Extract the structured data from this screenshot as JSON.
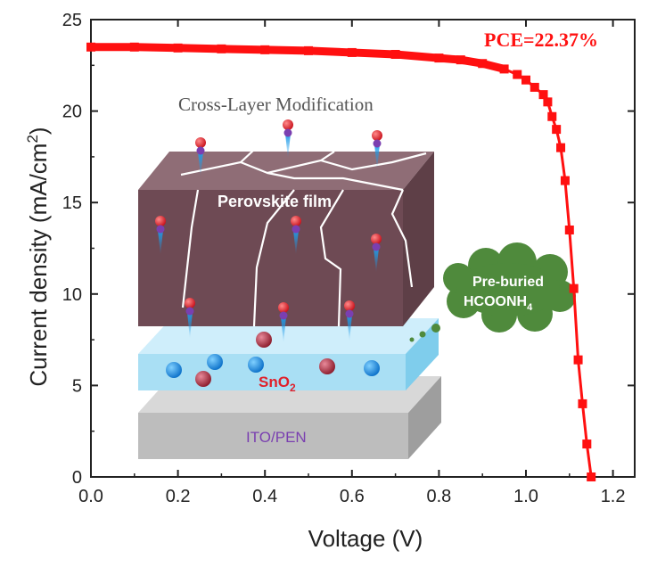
{
  "chart_data": {
    "type": "line",
    "title": "",
    "xlabel": "Voltage (V)",
    "ylabel_main": "Current density (mA/cm",
    "ylabel_sup": "2",
    "ylabel_close": ")",
    "xlim": [
      0.0,
      1.25
    ],
    "ylim": [
      0,
      25
    ],
    "x_ticks": [
      "0.0",
      "0.2",
      "0.4",
      "0.6",
      "0.8",
      "1.0",
      "1.2"
    ],
    "y_ticks": [
      "0",
      "5",
      "10",
      "15",
      "20",
      "25"
    ],
    "series": [
      {
        "color": "#ff1010",
        "x": [
          0.0,
          0.1,
          0.2,
          0.3,
          0.4,
          0.5,
          0.6,
          0.7,
          0.8,
          0.85,
          0.9,
          0.95,
          0.98,
          1.0,
          1.02,
          1.04,
          1.05,
          1.06,
          1.07,
          1.08,
          1.09,
          1.1,
          1.11,
          1.12,
          1.13,
          1.14,
          1.15
        ],
        "y": [
          23.5,
          23.5,
          23.45,
          23.4,
          23.35,
          23.3,
          23.2,
          23.1,
          22.9,
          22.8,
          22.6,
          22.3,
          22.0,
          21.7,
          21.3,
          20.9,
          20.5,
          19.7,
          19.0,
          18.0,
          16.2,
          13.5,
          10.3,
          6.4,
          4.0,
          1.8,
          0.0
        ]
      }
    ],
    "annotations": {
      "pce": "PCE=22.37%",
      "inset_caption": "Cross-Layer Modification",
      "film": "Perovskite film",
      "sno2_main": "SnO",
      "sno2_sub": "2",
      "ito": "ITO/PEN",
      "cloud_line1": "Pre-buried",
      "cloud_line2_main": "HCOONH",
      "cloud_line2_sub": "4"
    },
    "grid": false,
    "legend": "none"
  }
}
